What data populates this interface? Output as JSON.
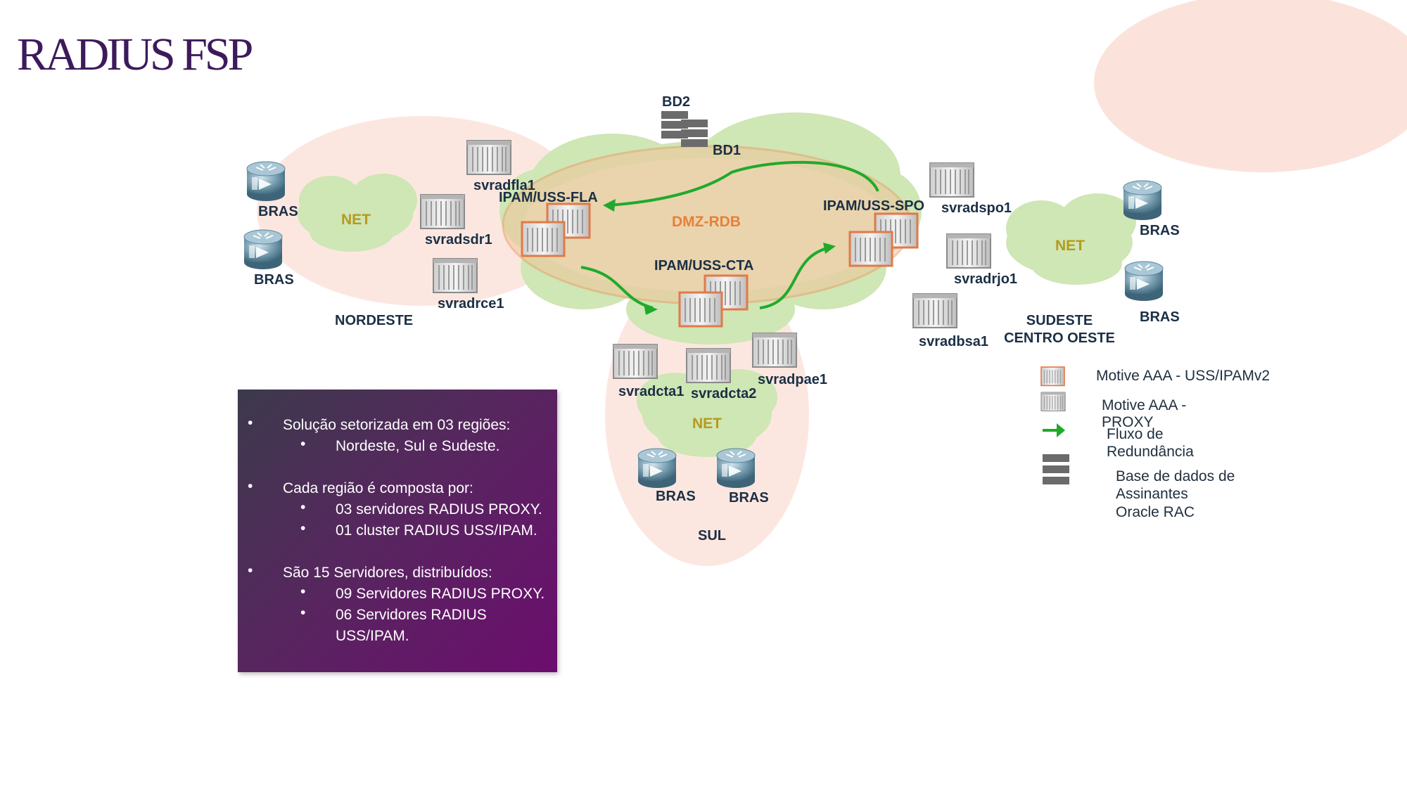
{
  "slide": {
    "title": "RADIUS FSP"
  },
  "diagram": {
    "top_labels": {
      "bd2": "BD2",
      "bd1": "BD1",
      "dmz": "DMZ-RDB",
      "ipam_fla": "IPAM/USS-FLA",
      "ipam_spo": "IPAM/USS-SPO",
      "ipam_cta": "IPAM/USS-CTA"
    },
    "servers": {
      "svradfla1": "svradfla1",
      "svradsdr1": "svradsdr1",
      "svradrce1": "svradrce1",
      "svradspo1": "svradspo1",
      "svradrjo1": "svradrjo1",
      "svradbsa1": "svradbsa1",
      "svradcta1": "svradcta1",
      "svradcta2": "svradcta2",
      "svradpae1": "svradpae1"
    },
    "routers": {
      "bras_ne_top": "BRAS",
      "bras_ne_bottom": "BRAS",
      "bras_se_top": "BRAS",
      "bras_se_bottom": "BRAS",
      "bras_sul_left": "BRAS",
      "bras_sul_right": "BRAS"
    },
    "clouds": {
      "net_ne": "NET",
      "net_se": "NET",
      "net_sul": "NET"
    },
    "regions": {
      "nordeste": "NORDESTE",
      "sudeste_line1": "SUDESTE",
      "sudeste_line2": "CENTRO OESTE",
      "sul": "SUL"
    }
  },
  "legend": {
    "items": [
      {
        "lines": [
          "Motive AAA - USS/IPAMv2"
        ]
      },
      {
        "lines": [
          "Motive AAA -",
          "PROXY"
        ]
      },
      {
        "lines": [
          "Fluxo de",
          "Redundância"
        ]
      },
      {
        "lines": [
          "Base de dados de",
          "Assinantes",
          "Oracle RAC"
        ]
      }
    ]
  },
  "info": {
    "bullets": [
      {
        "text": "Solução setorizada em 03 regiões:",
        "sub": [
          "Nordeste, Sul e Sudeste."
        ]
      },
      {
        "text": "Cada região é composta por:",
        "sub": [
          "03 servidores RADIUS PROXY.",
          "01 cluster RADIUS USS/IPAM."
        ]
      },
      {
        "text": "São 15 Servidores, distribuídos:",
        "sub": [
          "09 Servidores RADIUS PROXY.",
          "06 Servidores RADIUS USS/IPAM."
        ]
      }
    ]
  },
  "colors": {
    "title": "#3d1a5c",
    "region_fill": "#fbe3db",
    "cloud_fill": "#cfe6b5",
    "flow_arrow": "#1faa2b",
    "dmz_ellipse": "#f2c59a",
    "uss_server_border": "#e07a48",
    "box_gradient_start": "#3c3a4c",
    "box_gradient_end": "#6c0d6e"
  }
}
